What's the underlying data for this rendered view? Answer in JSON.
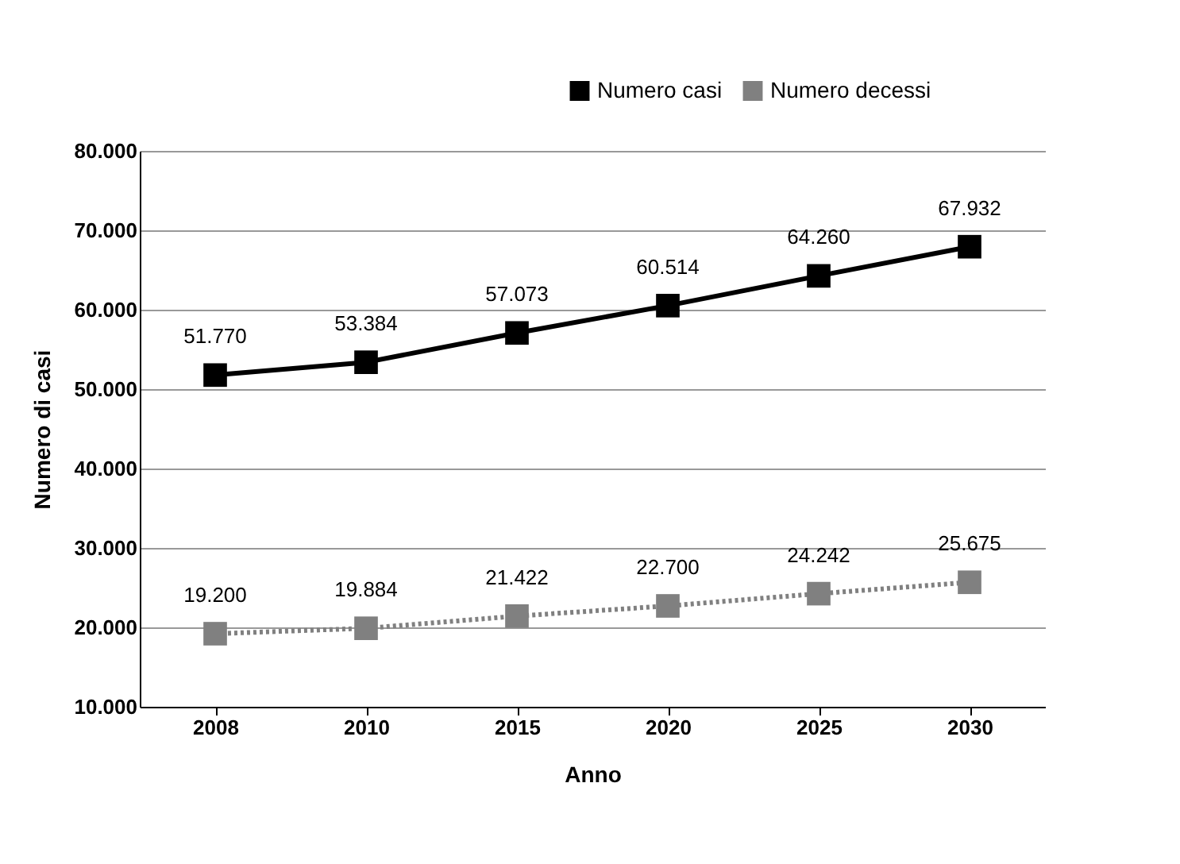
{
  "chart_data": {
    "type": "line",
    "xlabel": "Anno",
    "ylabel": "Numero di casi",
    "categories": [
      "2008",
      "2010",
      "2015",
      "2020",
      "2025",
      "2030"
    ],
    "series": [
      {
        "name": "Numero casi",
        "color": "#000000",
        "line_style": "solid",
        "values": [
          51770,
          53384,
          57073,
          60514,
          64260,
          67932
        ],
        "value_labels": [
          "51.770",
          "53.384",
          "57.073",
          "60.514",
          "64.260",
          "67.932"
        ]
      },
      {
        "name": "Numero decessi",
        "color": "#808080",
        "line_style": "dotted",
        "values": [
          19200,
          19884,
          21422,
          22700,
          24242,
          25675
        ],
        "value_labels": [
          "19.200",
          "19.884",
          "21.422",
          "22.700",
          "24.242",
          "25.675"
        ]
      }
    ],
    "ylim": [
      10000,
      80000
    ],
    "yticks": [
      {
        "value": 10000,
        "label": "10.000"
      },
      {
        "value": 20000,
        "label": "20.000"
      },
      {
        "value": 30000,
        "label": "30.000"
      },
      {
        "value": 40000,
        "label": "40.000"
      },
      {
        "value": 50000,
        "label": "50.000"
      },
      {
        "value": 60000,
        "label": "60.000"
      },
      {
        "value": 70000,
        "label": "70.000"
      },
      {
        "value": 80000,
        "label": "80.000"
      }
    ],
    "grid": "y",
    "legend": "top right",
    "marker": "square"
  }
}
